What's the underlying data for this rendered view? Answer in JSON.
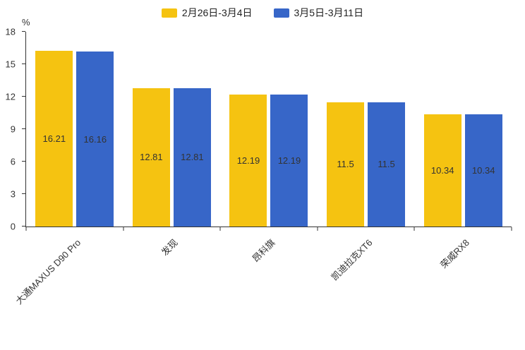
{
  "chart_data": {
    "type": "bar",
    "title": "",
    "ylabel": "%",
    "xlabel": "",
    "ylim": [
      0,
      18
    ],
    "yticks": [
      0,
      3,
      6,
      9,
      12,
      15,
      18
    ],
    "grid": false,
    "legend_position": "top",
    "bar_value_labels": true,
    "categories": [
      "大通MAXUS D90 Pro",
      "发现",
      "昂科旗",
      "凯迪拉克XT6",
      "荣威RX8"
    ],
    "series": [
      {
        "name": "2月26日-3月4日",
        "color": "#F5C311",
        "values": [
          16.21,
          12.81,
          12.19,
          11.5,
          10.34
        ]
      },
      {
        "name": "3月5日-3月11日",
        "color": "#3766C8",
        "values": [
          16.16,
          12.81,
          12.19,
          11.5,
          10.34
        ]
      }
    ]
  }
}
